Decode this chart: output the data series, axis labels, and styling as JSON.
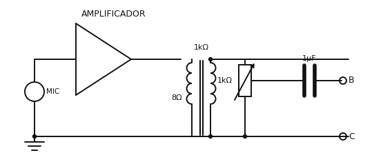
{
  "bg_color": "#ffffff",
  "line_color": "#111111",
  "text_color": "#111111",
  "amplifier_label": "AMPLIFICADOR",
  "mic_label": "MIC",
  "r_primary_label": "8Ω",
  "r_secondary_top_label": "1kΩ",
  "r_pot_label": "1kΩ",
  "cap_label": "1μF",
  "terminal_B": "B",
  "terminal_C": "C"
}
